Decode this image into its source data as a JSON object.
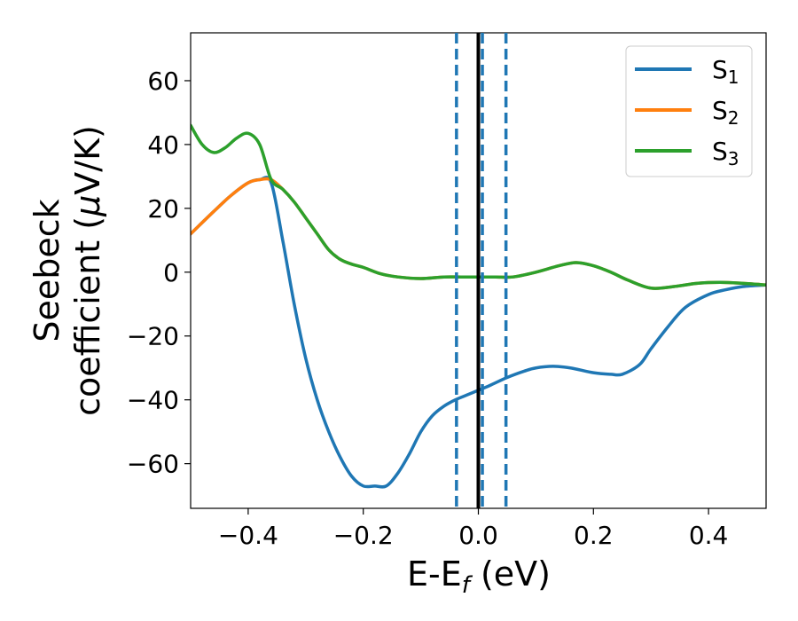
{
  "chart_data": {
    "type": "line",
    "xlabel_main": "E-E",
    "xlabel_sub": "f",
    "xlabel_unit": " (eV)",
    "ylabel_line1": "Seebeck",
    "ylabel_line2": "coefficient  (",
    "ylabel_mu": "μ",
    "ylabel_unit": "V/K)",
    "xlim": [
      -0.5,
      0.5
    ],
    "ylim": [
      -74,
      75
    ],
    "x_ticks": [
      -0.4,
      -0.2,
      0.0,
      0.2,
      0.4
    ],
    "x_tick_labels": [
      "−0.4",
      "−0.2",
      "0.0",
      "0.2",
      "0.4"
    ],
    "y_ticks": [
      60,
      40,
      20,
      0,
      -20,
      -40,
      -60
    ],
    "y_tick_labels": [
      "60",
      "40",
      "20",
      "0",
      "−20",
      "−40",
      "−60"
    ],
    "grid": false,
    "legend_position": "top-right",
    "vlines": [
      {
        "x": 0.0,
        "style": "solid",
        "color": "#000000"
      },
      {
        "x": -0.038,
        "style": "dashed",
        "color": "#1f77b4"
      },
      {
        "x": 0.007,
        "style": "dashed",
        "color": "#1f77b4"
      },
      {
        "x": 0.048,
        "style": "dashed",
        "color": "#1f77b4"
      }
    ],
    "series": [
      {
        "name_main": "S",
        "name_sub": "1",
        "color": "#1f77b4",
        "x": [
          -0.5,
          -0.46,
          -0.43,
          -0.4,
          -0.38,
          -0.36,
          -0.34,
          -0.32,
          -0.3,
          -0.28,
          -0.26,
          -0.24,
          -0.22,
          -0.2,
          -0.18,
          -0.16,
          -0.14,
          -0.12,
          -0.1,
          -0.08,
          -0.06,
          -0.04,
          -0.02,
          0.0,
          0.02,
          0.05,
          0.08,
          0.1,
          0.13,
          0.16,
          0.2,
          0.23,
          0.25,
          0.28,
          0.3,
          0.33,
          0.36,
          0.4,
          0.43,
          0.46,
          0.5
        ],
        "y": [
          12,
          19,
          24,
          28,
          29,
          28,
          10,
          -10,
          -27,
          -40,
          -50,
          -58,
          -64,
          -67,
          -67,
          -67,
          -63,
          -57,
          -50,
          -45,
          -42,
          -40,
          -38.5,
          -37,
          -35.5,
          -33,
          -31,
          -30,
          -29.5,
          -30,
          -31.5,
          -32,
          -32,
          -29,
          -24,
          -17,
          -11,
          -7,
          -5.5,
          -4.5,
          -4
        ]
      },
      {
        "name_main": "S",
        "name_sub": "2",
        "color": "#ff7f0e",
        "x": [
          -0.5,
          -0.46,
          -0.43,
          -0.4,
          -0.38,
          -0.36,
          -0.34,
          -0.32,
          -0.3,
          -0.28,
          -0.26,
          -0.24,
          -0.22,
          -0.2,
          -0.17,
          -0.14,
          -0.1,
          -0.06,
          -0.03,
          0.0,
          0.03,
          0.06,
          0.1,
          0.14,
          0.17,
          0.2,
          0.23,
          0.26,
          0.3,
          0.34,
          0.38,
          0.42,
          0.46,
          0.5
        ],
        "y": [
          12,
          19,
          24,
          28,
          29,
          29,
          26,
          22,
          17,
          12,
          7,
          4,
          2.5,
          1.5,
          -0.5,
          -1.5,
          -2,
          -1.5,
          -1.5,
          -1.5,
          -1.5,
          -1.5,
          0,
          2,
          3,
          2,
          0,
          -2.5,
          -5,
          -4.5,
          -3.5,
          -3.2,
          -3.5,
          -4
        ]
      },
      {
        "name_main": "S",
        "name_sub": "3",
        "color": "#2ca02c",
        "x": [
          -0.5,
          -0.48,
          -0.46,
          -0.44,
          -0.42,
          -0.4,
          -0.38,
          -0.36,
          -0.34,
          -0.32,
          -0.3,
          -0.28,
          -0.26,
          -0.24,
          -0.22,
          -0.2,
          -0.17,
          -0.14,
          -0.1,
          -0.06,
          -0.03,
          0.0,
          0.03,
          0.06,
          0.1,
          0.14,
          0.17,
          0.2,
          0.23,
          0.26,
          0.3,
          0.34,
          0.38,
          0.42,
          0.46,
          0.5
        ],
        "y": [
          46,
          40,
          37.5,
          39,
          42,
          43.5,
          40,
          29,
          26,
          22,
          17,
          12,
          7,
          4,
          2.5,
          1.5,
          -0.5,
          -1.5,
          -2,
          -1.5,
          -1.5,
          -1.5,
          -1.5,
          -1.5,
          0,
          2,
          3,
          2,
          0,
          -2.5,
          -5,
          -4.5,
          -3.5,
          -3.2,
          -3.5,
          -4
        ]
      }
    ]
  }
}
